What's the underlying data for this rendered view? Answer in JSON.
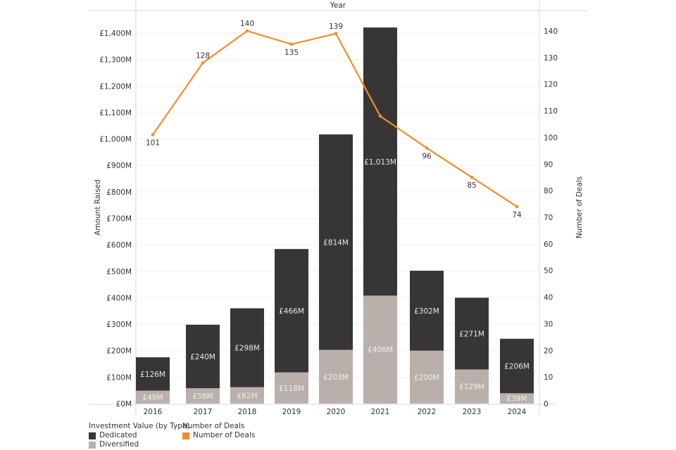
{
  "chart_data": {
    "type": "bar",
    "subtype": "stacked-bar-with-line",
    "title": "",
    "xlabel": "Year",
    "ylabel": "Amount Raised",
    "y2label": "Number of Deals",
    "categories": [
      "2016",
      "2017",
      "2018",
      "2019",
      "2020",
      "2021",
      "2022",
      "2023",
      "2024"
    ],
    "series": [
      {
        "name": "Diversified",
        "axis": "left",
        "kind": "bar",
        "color": "#b9b0ab",
        "values": [
          49,
          58,
          62,
          118,
          203,
          408,
          200,
          129,
          39
        ],
        "labels": [
          "£49M",
          "£58M",
          "£62M",
          "£118M",
          "£203M",
          "£408M",
          "£200M",
          "£129M",
          "£39M"
        ]
      },
      {
        "name": "Dedicated",
        "axis": "left",
        "kind": "bar",
        "color": "#373535",
        "values": [
          126,
          240,
          298,
          466,
          814,
          1013,
          302,
          271,
          206
        ],
        "labels": [
          "£126M",
          "£240M",
          "£298M",
          "£466M",
          "£814M",
          "£1,013M",
          "£302M",
          "£271M",
          "£206M"
        ]
      },
      {
        "name": "Number of Deals",
        "axis": "right",
        "kind": "line",
        "color": "#f28e2b",
        "values": [
          101,
          128,
          140,
          135,
          139,
          108,
          96,
          85,
          74
        ],
        "labels": [
          "101",
          "128",
          "140",
          "135",
          "139",
          "",
          "96",
          "85",
          "74"
        ]
      }
    ],
    "ylim": [
      0,
      1400
    ],
    "y2lim": [
      0,
      140
    ],
    "yticks": [
      "£0M",
      "£100M",
      "£200M",
      "£300M",
      "£400M",
      "£500M",
      "£600M",
      "£700M",
      "£800M",
      "£900M",
      "£1,000M",
      "£1,100M",
      "£1,200M",
      "£1,300M",
      "£1,400M"
    ],
    "y2ticks": [
      "0",
      "10",
      "20",
      "30",
      "40",
      "50",
      "60",
      "70",
      "80",
      "90",
      "100",
      "110",
      "120",
      "130",
      "140"
    ],
    "grid": true,
    "legend": {
      "placement": "bottom-left",
      "groups": [
        {
          "title": "Investment Value (by Type)",
          "items": [
            {
              "label": "Dedicated",
              "color": "#373535"
            },
            {
              "label": "Diversified",
              "color": "#b9b0ab"
            }
          ]
        },
        {
          "title": "Number of Deals",
          "items": [
            {
              "label": "Number of Deals",
              "color": "#f28e2b"
            }
          ]
        }
      ]
    }
  }
}
